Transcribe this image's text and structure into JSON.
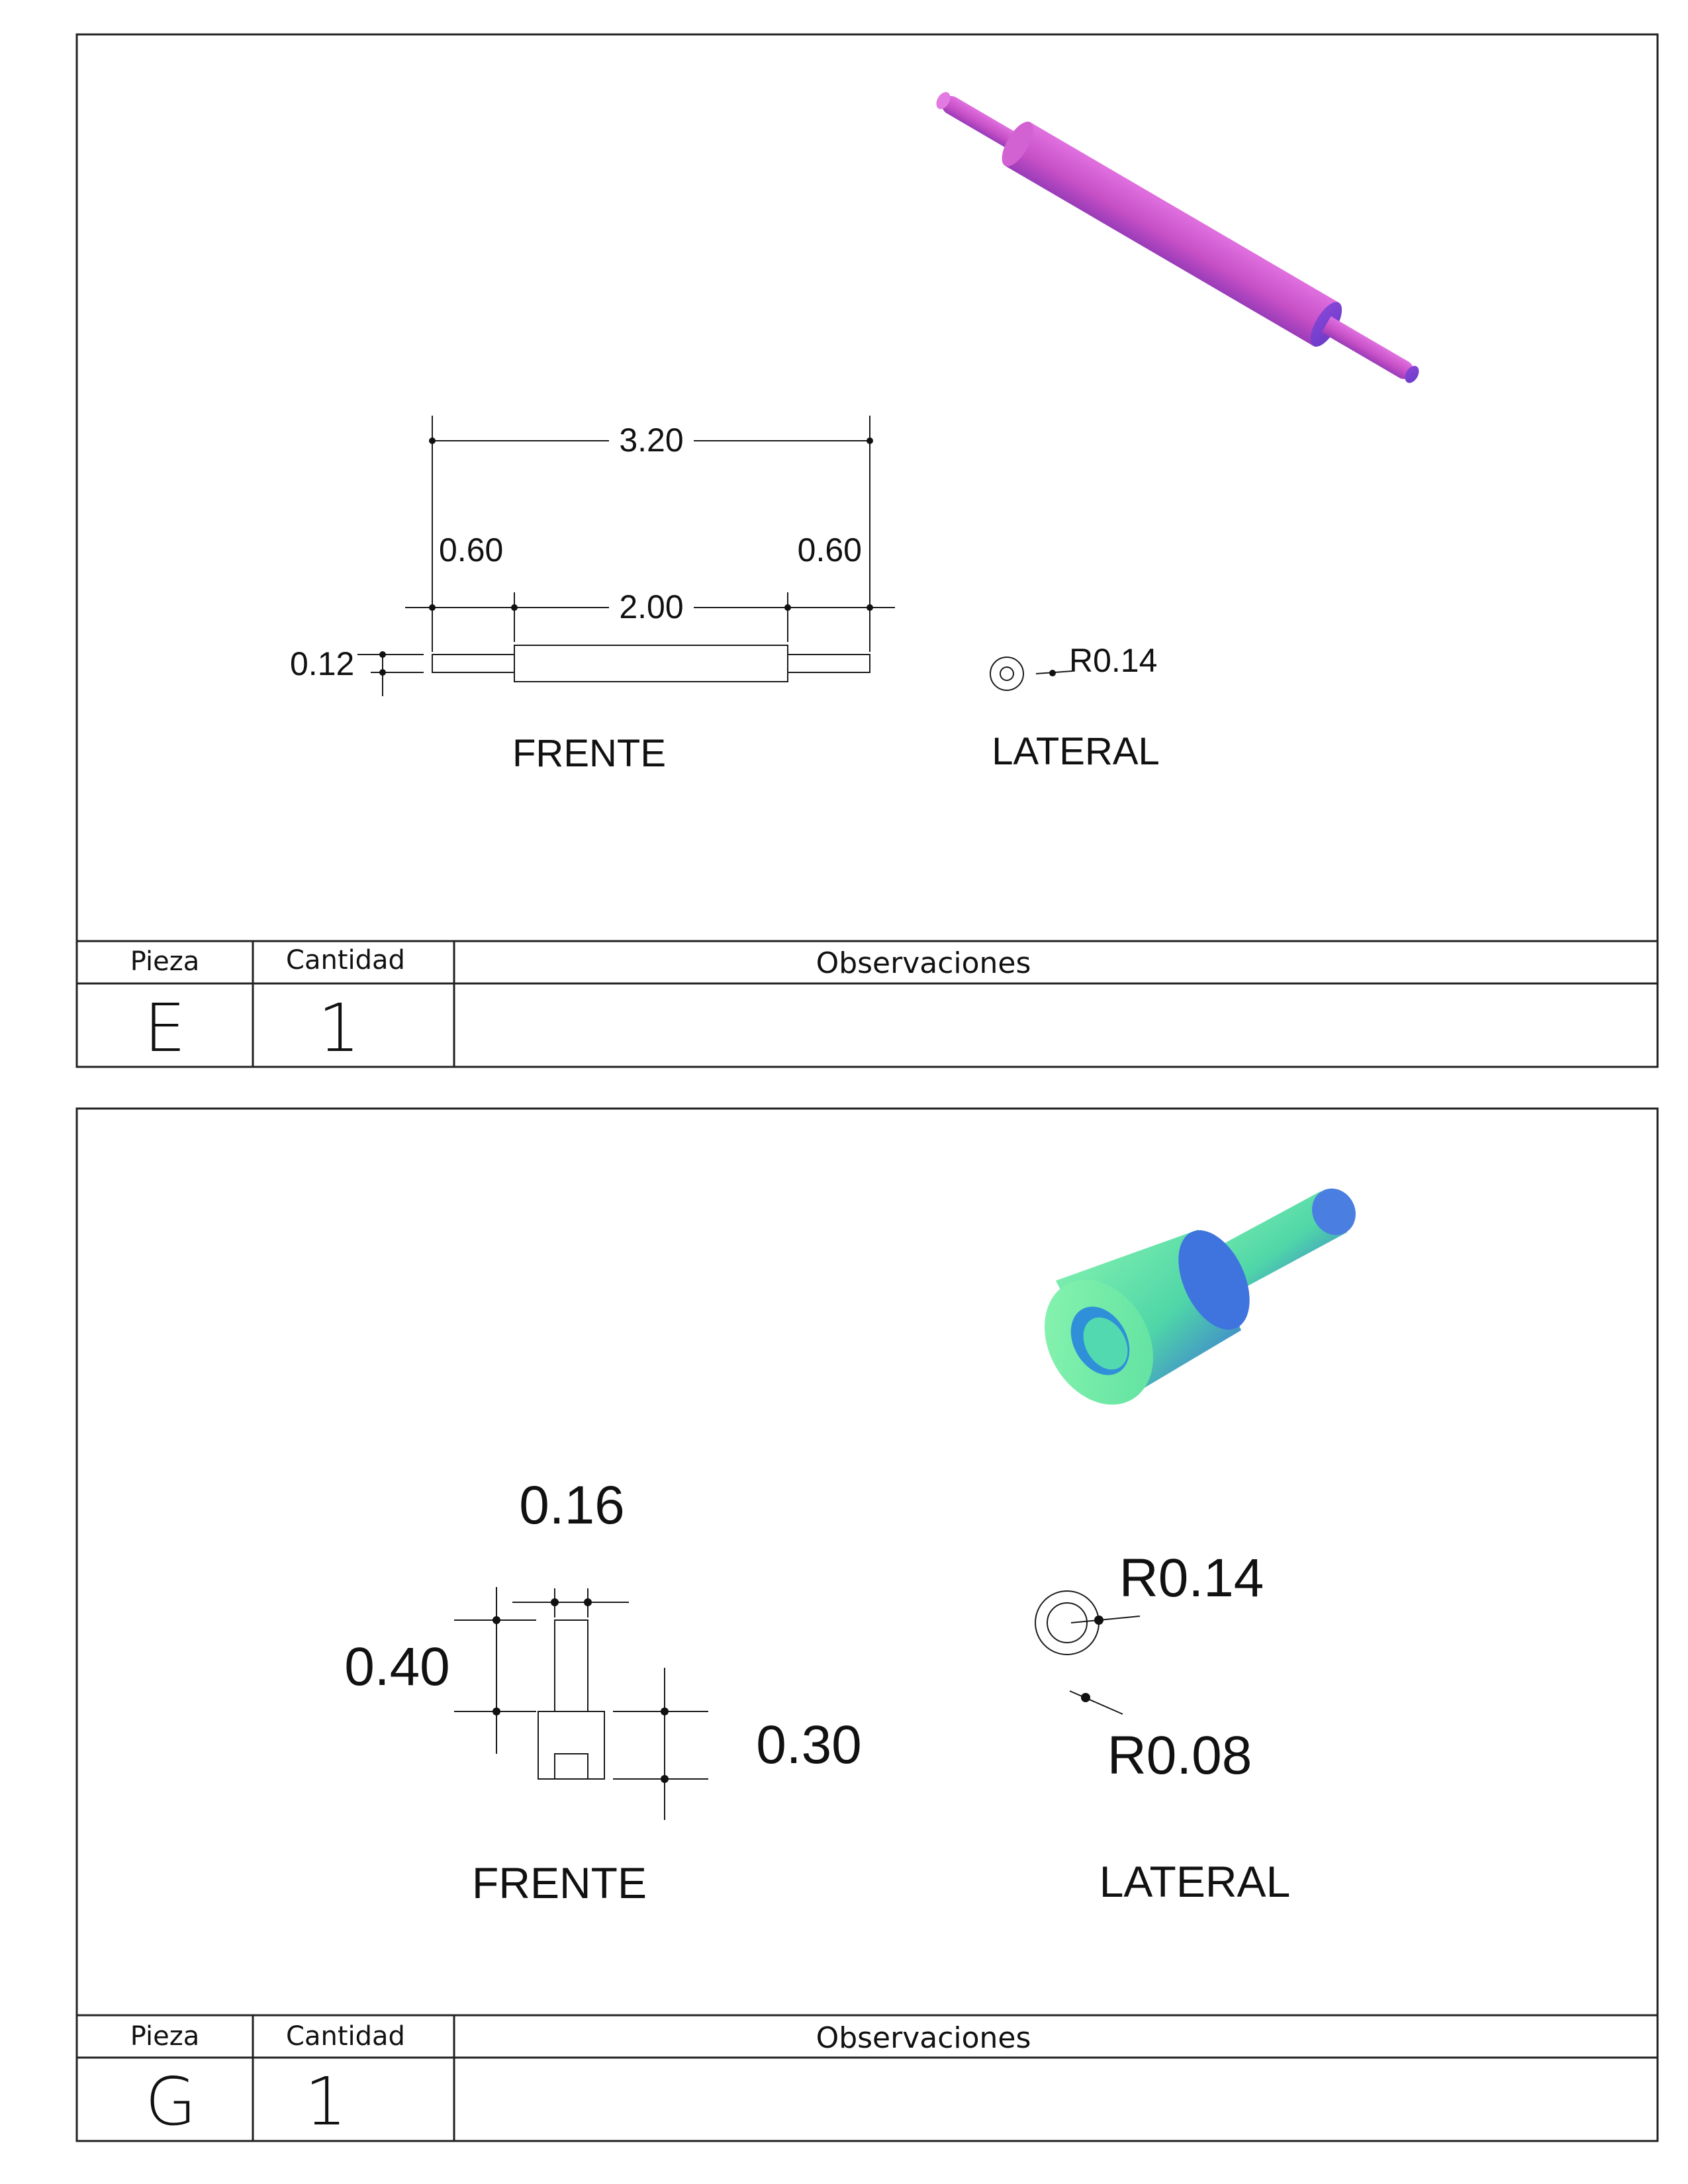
{
  "sheets": [
    {
      "dimensions": {
        "overall": "3.20",
        "left_end": "0.60",
        "right_end": "0.60",
        "middle": "2.00",
        "diameter": "0.12",
        "radius": "R0.14"
      },
      "views": {
        "front": "FRENTE",
        "side": "LATERAL"
      },
      "table": {
        "headers": [
          "Pieza",
          "Cantidad",
          "Observaciones"
        ],
        "pieza": "E",
        "cantidad": "1",
        "observaciones": ""
      },
      "colors": {
        "model": "#c64fc6"
      }
    },
    {
      "dimensions": {
        "top_width": "0.16",
        "upper_height": "0.40",
        "lower_height": "0.30",
        "outer_radius": "R0.14",
        "inner_radius": "R0.08"
      },
      "views": {
        "front": "FRENTE",
        "side": "LATERAL"
      },
      "table": {
        "headers": [
          "Pieza",
          "Cantidad",
          "Observaciones"
        ],
        "pieza": "G",
        "cantidad": "1",
        "observaciones": ""
      },
      "colors": {
        "model": "#5fe0a0"
      }
    }
  ]
}
